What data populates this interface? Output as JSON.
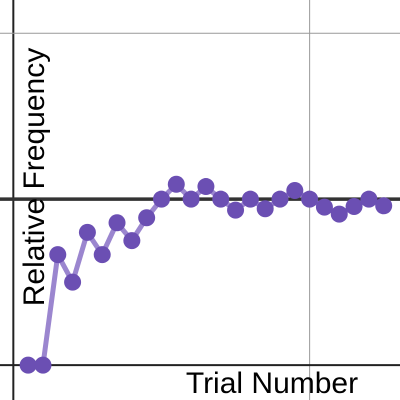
{
  "chart_data": {
    "type": "line",
    "x_label": "Trial Number",
    "y_label": "Relative Frequency",
    "x": [
      1,
      2,
      3,
      4,
      5,
      6,
      7,
      8,
      9,
      10,
      11,
      12,
      13,
      14,
      15,
      16,
      17,
      18,
      19,
      20,
      21,
      22,
      23,
      24,
      25
    ],
    "series": [
      {
        "color": "#6b4fb3",
        "line_color": "#9b86cf",
        "values": [
          0,
          0,
          0.333,
          0.25,
          0.4,
          0.333,
          0.429,
          0.375,
          0.444,
          0.5,
          0.545,
          0.5,
          0.538,
          0.5,
          0.467,
          0.5,
          0.471,
          0.5,
          0.526,
          0.5,
          0.476,
          0.455,
          0.478,
          0.5,
          0.48
        ]
      }
    ],
    "xlim": [
      -0.9,
      26.1
    ],
    "ylim": [
      -0.105,
      1.1
    ],
    "xticks": [
      0,
      20
    ],
    "yticks": [
      0,
      0.5,
      1
    ],
    "reference_line": 0.5,
    "grid": true
  }
}
